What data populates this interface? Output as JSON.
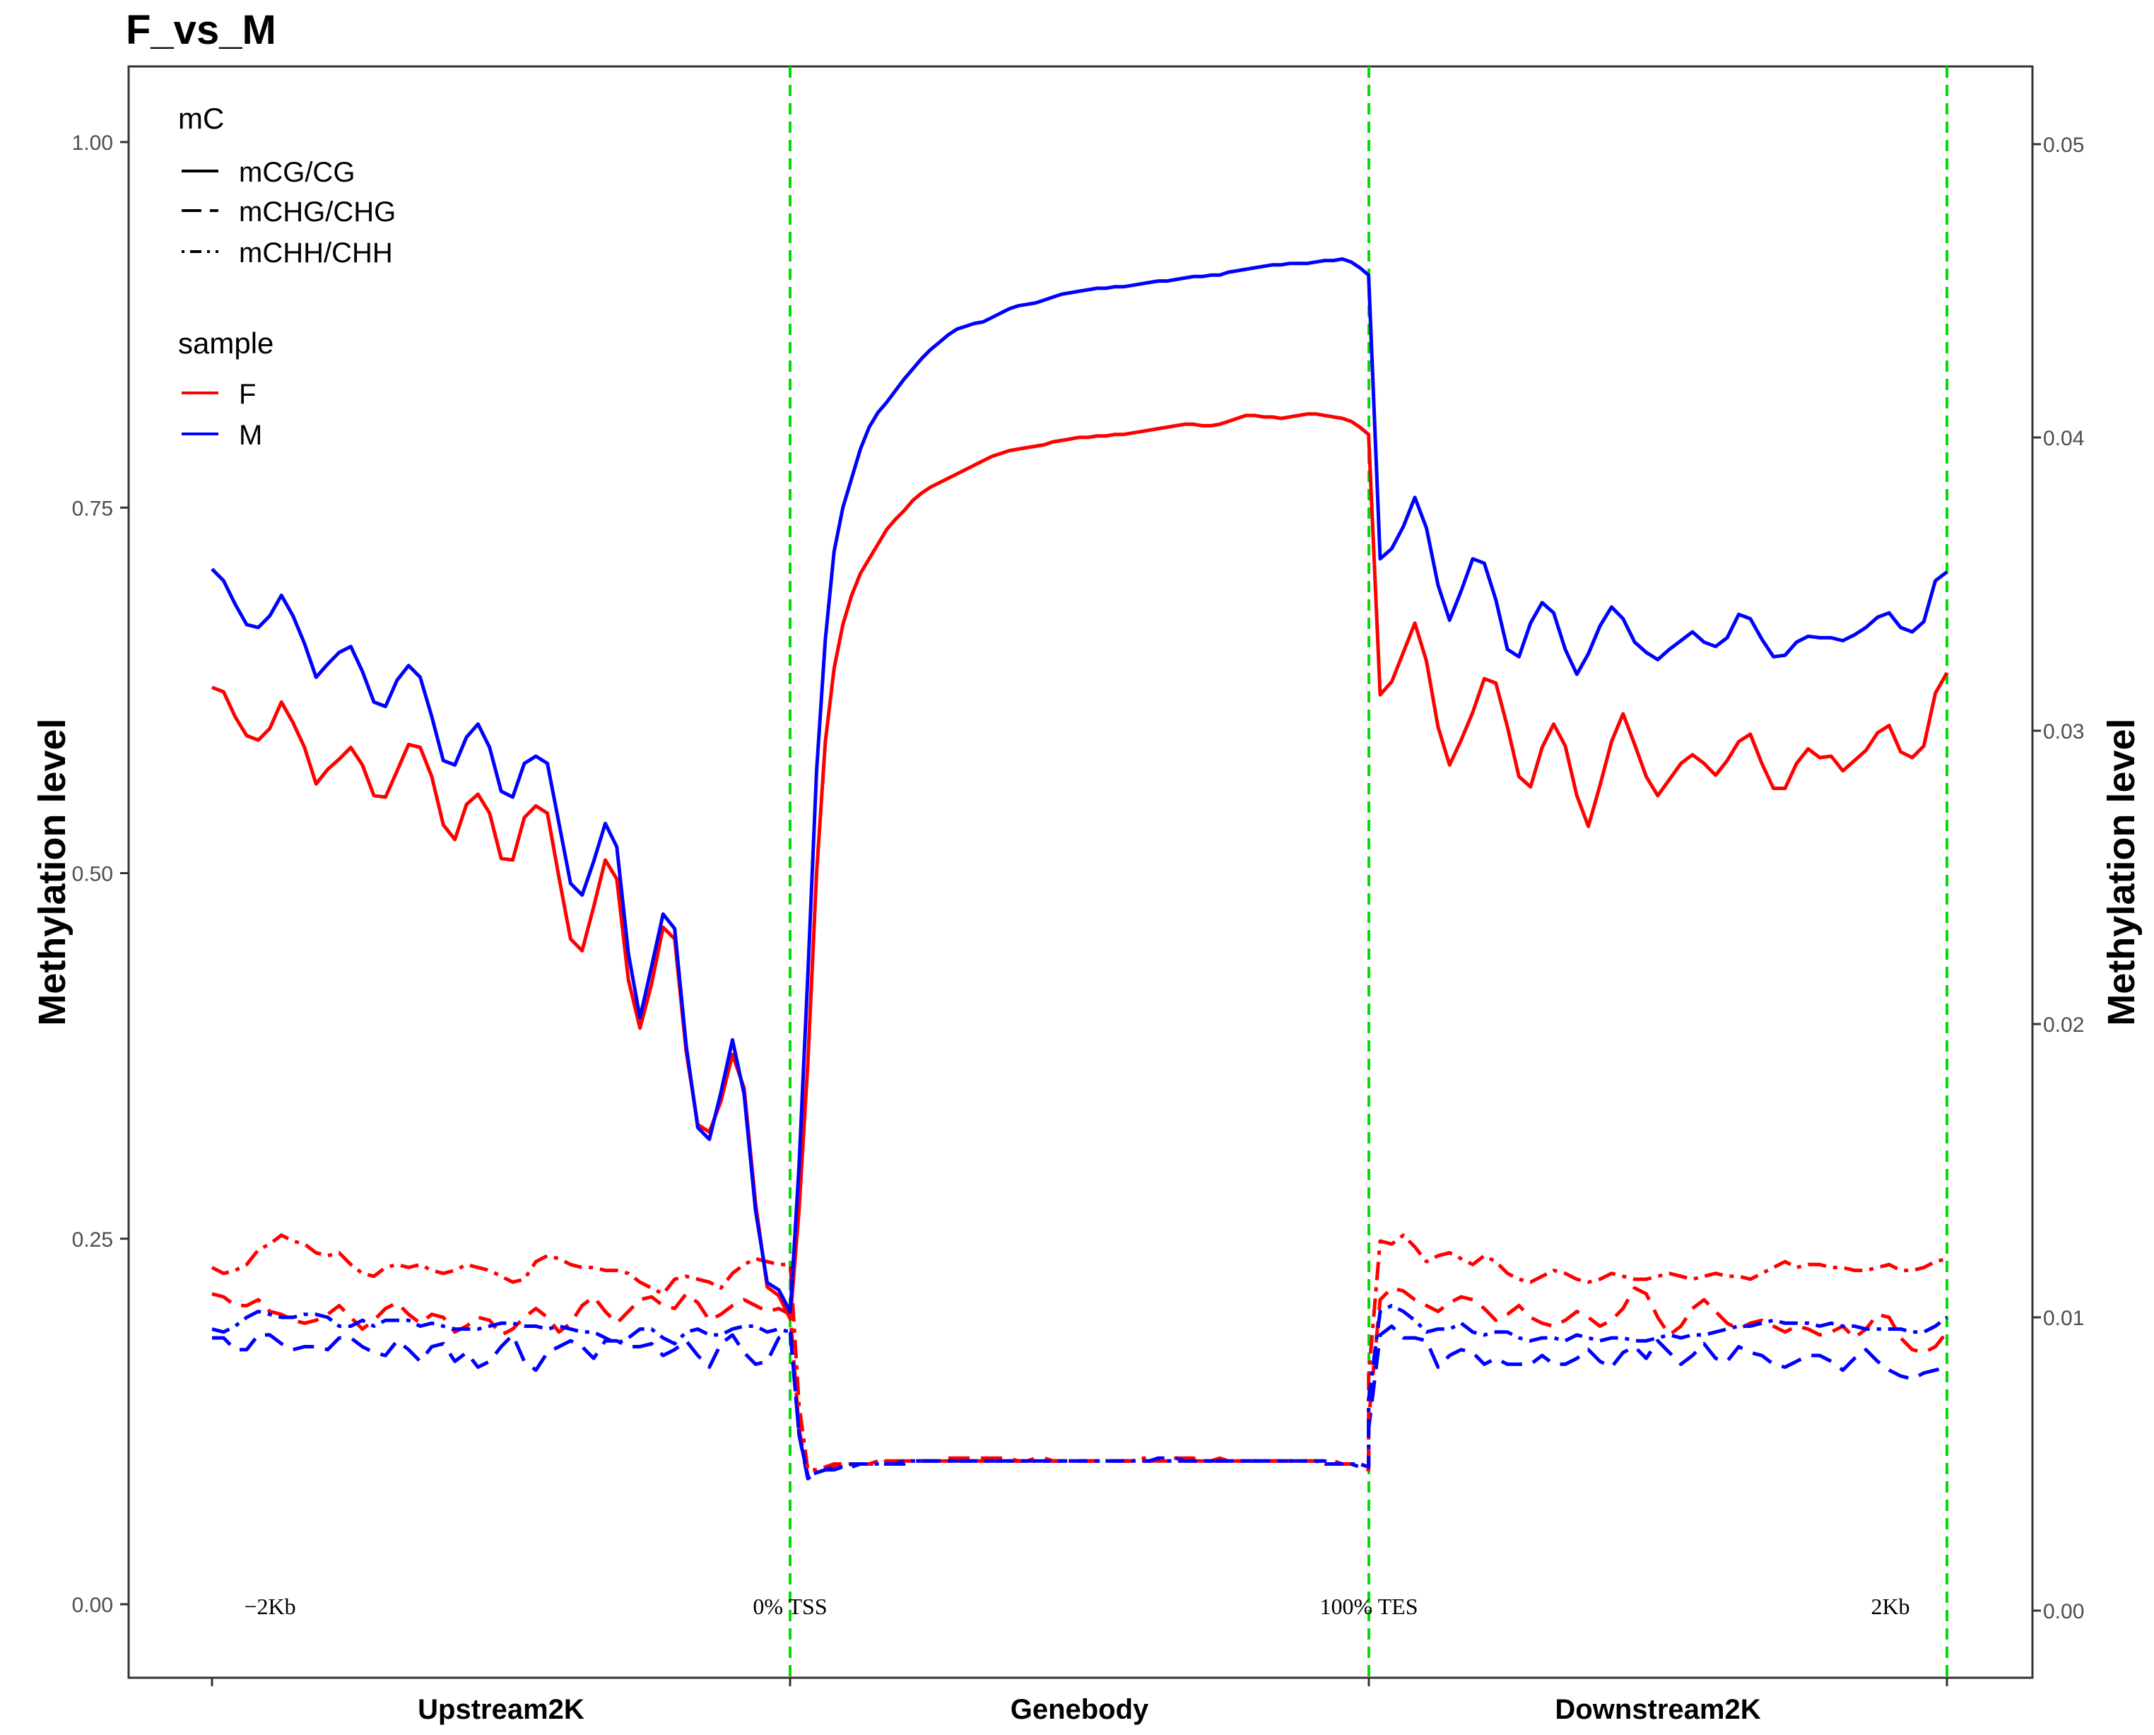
{
  "chart_data": {
    "type": "line",
    "title": "F_vs_M",
    "ylabel_left": "Methylation level",
    "ylabel_right": "Methylation level",
    "ylim_left": [
      -0.05,
      1.05
    ],
    "ylim_right": [
      -0.0025,
      0.0525
    ],
    "yticks_left": [
      "0.00",
      "0.25",
      "0.50",
      "0.75",
      "1.00"
    ],
    "yticks_right": [
      "0.00",
      "0.01",
      "0.02",
      "0.03",
      "0.04",
      "0.05"
    ],
    "grid": false,
    "regions": [
      "Upstream2K",
      "Genebody",
      "Downstream2K"
    ],
    "annotations": [
      "−2Kb",
      "0% TSS",
      "100% TES",
      "2Kb"
    ],
    "boundary_lines": [
      0,
      100
    ],
    "x_domain": [
      -100,
      200
    ],
    "legend": {
      "placement": "top-left",
      "mc_title": "mC",
      "mc_entries": [
        "mCG/CG",
        "mCHG/CHG",
        "mCHH/CHH"
      ],
      "sample_title": "sample",
      "sample_entries": [
        "F",
        "M"
      ]
    },
    "colors": {
      "F": "#ff0000",
      "M": "#0000ff",
      "boundary": "#00dd00"
    },
    "series": [
      {
        "sample": "F",
        "context": "mCG/CG",
        "axis": "left",
        "up": [
          0.627,
          0.624,
          0.607,
          0.594,
          0.591,
          0.599,
          0.617,
          0.603,
          0.586,
          0.561,
          0.571,
          0.578,
          0.586,
          0.574,
          0.553,
          0.552,
          0.57,
          0.588,
          0.586,
          0.566,
          0.533,
          0.523,
          0.547,
          0.554,
          0.541,
          0.51,
          0.509,
          0.538,
          0.546,
          0.541,
          0.497,
          0.455,
          0.447,
          0.477,
          0.509,
          0.496,
          0.427,
          0.394,
          0.424,
          0.463,
          0.455,
          0.378,
          0.328,
          0.323,
          0.344,
          0.376,
          0.353,
          0.274,
          0.217,
          0.211
        ],
        "gene": [
          0.195,
          0.27,
          0.37,
          0.5,
          0.59,
          0.64,
          0.67,
          0.69,
          0.705,
          0.715,
          0.725,
          0.735,
          0.742,
          0.748,
          0.755,
          0.76,
          0.764,
          0.767,
          0.77,
          0.773,
          0.776,
          0.779,
          0.782,
          0.785,
          0.787,
          0.789,
          0.79,
          0.791,
          0.792,
          0.793,
          0.795,
          0.796,
          0.797,
          0.798,
          0.798,
          0.799,
          0.799,
          0.8,
          0.8,
          0.801,
          0.802,
          0.803,
          0.804,
          0.805,
          0.806,
          0.807,
          0.807,
          0.806,
          0.806,
          0.807,
          0.809,
          0.811,
          0.813,
          0.813,
          0.812,
          0.812,
          0.811,
          0.812,
          0.813,
          0.814,
          0.814,
          0.813,
          0.812,
          0.811,
          0.809,
          0.805,
          0.8
        ],
        "down": [
          0.799,
          0.622,
          0.631,
          0.651,
          0.671,
          0.645,
          0.6,
          0.574,
          0.591,
          0.61,
          0.633,
          0.63,
          0.6,
          0.566,
          0.559,
          0.586,
          0.602,
          0.587,
          0.553,
          0.532,
          0.56,
          0.59,
          0.609,
          0.588,
          0.566,
          0.553,
          0.564,
          0.575,
          0.581,
          0.575,
          0.567,
          0.577,
          0.59,
          0.595,
          0.575,
          0.558,
          0.558,
          0.575,
          0.585,
          0.579,
          0.58,
          0.57,
          0.577,
          0.584,
          0.596,
          0.601,
          0.583,
          0.579,
          0.587,
          0.623,
          0.637
        ]
      },
      {
        "sample": "M",
        "context": "mCG/CG",
        "axis": "left",
        "up": [
          0.708,
          0.7,
          0.684,
          0.67,
          0.668,
          0.676,
          0.69,
          0.676,
          0.657,
          0.634,
          0.643,
          0.651,
          0.655,
          0.638,
          0.617,
          0.614,
          0.632,
          0.642,
          0.634,
          0.607,
          0.577,
          0.574,
          0.593,
          0.602,
          0.586,
          0.556,
          0.552,
          0.575,
          0.58,
          0.575,
          0.534,
          0.493,
          0.485,
          0.508,
          0.534,
          0.518,
          0.445,
          0.401,
          0.436,
          0.472,
          0.462,
          0.382,
          0.326,
          0.318,
          0.35,
          0.386,
          0.349,
          0.269,
          0.22,
          0.215
        ],
        "gene": [
          0.2,
          0.3,
          0.43,
          0.57,
          0.66,
          0.72,
          0.75,
          0.77,
          0.79,
          0.805,
          0.815,
          0.822,
          0.83,
          0.838,
          0.845,
          0.852,
          0.858,
          0.863,
          0.868,
          0.872,
          0.874,
          0.876,
          0.877,
          0.88,
          0.883,
          0.886,
          0.888,
          0.889,
          0.89,
          0.892,
          0.894,
          0.896,
          0.897,
          0.898,
          0.899,
          0.9,
          0.9,
          0.901,
          0.901,
          0.902,
          0.903,
          0.904,
          0.905,
          0.905,
          0.906,
          0.907,
          0.908,
          0.908,
          0.909,
          0.909,
          0.911,
          0.912,
          0.913,
          0.914,
          0.915,
          0.916,
          0.916,
          0.917,
          0.917,
          0.917,
          0.918,
          0.919,
          0.919,
          0.92,
          0.918,
          0.914,
          0.909
        ],
        "down": [
          0.908,
          0.715,
          0.722,
          0.737,
          0.757,
          0.736,
          0.697,
          0.673,
          0.693,
          0.715,
          0.712,
          0.687,
          0.653,
          0.648,
          0.671,
          0.685,
          0.678,
          0.653,
          0.636,
          0.65,
          0.669,
          0.682,
          0.674,
          0.658,
          0.651,
          0.646,
          0.653,
          0.659,
          0.665,
          0.658,
          0.655,
          0.661,
          0.677,
          0.674,
          0.66,
          0.648,
          0.649,
          0.658,
          0.662,
          0.661,
          0.661,
          0.659,
          0.663,
          0.668,
          0.675,
          0.678,
          0.668,
          0.665,
          0.672,
          0.7,
          0.706
        ]
      },
      {
        "sample": "F",
        "context": "mCHG/CHG",
        "axis": "right",
        "up": [
          0.0108,
          0.0107,
          0.0104,
          0.0104,
          0.0106,
          0.0102,
          0.0101,
          0.0099,
          0.0098,
          0.0099,
          0.0101,
          0.0104,
          0.01,
          0.0096,
          0.0099,
          0.0103,
          0.0105,
          0.0101,
          0.0098,
          0.0101,
          0.01,
          0.0095,
          0.0097,
          0.01,
          0.0099,
          0.0094,
          0.0096,
          0.01,
          0.0103,
          0.01,
          0.0095,
          0.0098,
          0.0104,
          0.0107,
          0.0102,
          0.0098,
          0.0102,
          0.0106,
          0.0107,
          0.0104,
          0.0103,
          0.0108,
          0.0105,
          0.0099,
          0.0101,
          0.0104,
          0.0106,
          0.0104,
          0.0102,
          0.0103
        ],
        "gene": [
          0.0101,
          0.0062,
          0.0046,
          0.0047,
          0.0048,
          0.0049,
          0.005,
          0.005,
          0.005,
          0.005,
          0.005,
          0.0051,
          0.0051,
          0.0051,
          0.0051,
          0.0051,
          0.0051,
          0.0051,
          0.0052,
          0.0052,
          0.0052,
          0.0052,
          0.0052,
          0.0052,
          0.0052,
          0.0052,
          0.0051,
          0.0051,
          0.0052,
          0.0052,
          0.0051,
          0.0051,
          0.0051,
          0.0051,
          0.0051,
          0.0051,
          0.0051,
          0.0051,
          0.0051,
          0.0051,
          0.0051,
          0.0051,
          0.0051,
          0.0052,
          0.0052,
          0.0052,
          0.0052,
          0.0051,
          0.0051,
          0.0052,
          0.0051,
          0.0051,
          0.0051,
          0.0051,
          0.0051,
          0.0051,
          0.0051,
          0.0051,
          0.0051,
          0.0051,
          0.0051,
          0.0051,
          0.0051,
          0.005,
          0.005,
          0.0049,
          0.0048
        ],
        "down": [
          0.0065,
          0.0106,
          0.011,
          0.0109,
          0.0106,
          0.0104,
          0.0102,
          0.0105,
          0.0107,
          0.0106,
          0.0103,
          0.0099,
          0.0101,
          0.0104,
          0.01,
          0.0098,
          0.0097,
          0.0099,
          0.0102,
          0.01,
          0.0097,
          0.0099,
          0.0103,
          0.011,
          0.0108,
          0.01,
          0.0094,
          0.0097,
          0.0103,
          0.0106,
          0.0102,
          0.0098,
          0.0096,
          0.0098,
          0.0099,
          0.0097,
          0.0095,
          0.0097,
          0.0096,
          0.0094,
          0.0095,
          0.0097,
          0.0093,
          0.0096,
          0.0101,
          0.01,
          0.0093,
          0.0089,
          0.0088,
          0.009,
          0.0095
        ]
      },
      {
        "sample": "M",
        "context": "mCHG/CHG",
        "axis": "right",
        "up": [
          0.0093,
          0.0093,
          0.0089,
          0.0089,
          0.0094,
          0.0094,
          0.0091,
          0.0089,
          0.009,
          0.009,
          0.0089,
          0.0093,
          0.0093,
          0.009,
          0.0088,
          0.0087,
          0.0092,
          0.0089,
          0.0085,
          0.009,
          0.0091,
          0.0085,
          0.0088,
          0.0083,
          0.0085,
          0.009,
          0.0094,
          0.0085,
          0.0082,
          0.0088,
          0.009,
          0.0092,
          0.009,
          0.0086,
          0.0092,
          0.0092,
          0.009,
          0.009,
          0.0091,
          0.0087,
          0.0089,
          0.0092,
          0.0087,
          0.0083,
          0.0091,
          0.0094,
          0.0088,
          0.0084,
          0.0085,
          0.0093
        ],
        "gene": [
          0.0095,
          0.006,
          0.0045,
          0.0047,
          0.0048,
          0.0048,
          0.0049,
          0.0049,
          0.005,
          0.005,
          0.005,
          0.005,
          0.005,
          0.005,
          0.0051,
          0.0051,
          0.0051,
          0.0051,
          0.0051,
          0.0051,
          0.0051,
          0.0051,
          0.0051,
          0.0051,
          0.0051,
          0.0051,
          0.0051,
          0.0051,
          0.0051,
          0.0051,
          0.0051,
          0.0051,
          0.0051,
          0.0051,
          0.0051,
          0.0051,
          0.0051,
          0.0051,
          0.0051,
          0.0051,
          0.0051,
          0.0051,
          0.0052,
          0.0052,
          0.0052,
          0.0051,
          0.0051,
          0.0051,
          0.0051,
          0.0051,
          0.0051,
          0.0051,
          0.0051,
          0.0051,
          0.0051,
          0.0051,
          0.0051,
          0.0051,
          0.0051,
          0.0051,
          0.0051,
          0.0051,
          0.005,
          0.005,
          0.005,
          0.0049,
          0.0049
        ],
        "down": [
          0.0062,
          0.0094,
          0.0097,
          0.0093,
          0.0093,
          0.0092,
          0.0083,
          0.0087,
          0.0089,
          0.0088,
          0.0084,
          0.0086,
          0.0084,
          0.0084,
          0.0084,
          0.0087,
          0.0084,
          0.0084,
          0.0086,
          0.0089,
          0.0085,
          0.0083,
          0.0088,
          0.009,
          0.0086,
          0.0092,
          0.0088,
          0.0084,
          0.0087,
          0.0091,
          0.0086,
          0.0085,
          0.009,
          0.0088,
          0.0087,
          0.0084,
          0.0083,
          0.0085,
          0.0087,
          0.0087,
          0.0085,
          0.0082,
          0.0086,
          0.0089,
          0.0085,
          0.0082,
          0.008,
          0.0079,
          0.0081,
          0.0082,
          0.0083
        ]
      },
      {
        "sample": "F",
        "context": "mCHH/CHH",
        "axis": "right",
        "up": [
          0.0117,
          0.0115,
          0.0116,
          0.0118,
          0.0123,
          0.0125,
          0.0128,
          0.0126,
          0.0125,
          0.0122,
          0.0121,
          0.0122,
          0.0118,
          0.0115,
          0.0114,
          0.0117,
          0.0118,
          0.0117,
          0.0118,
          0.0116,
          0.0115,
          0.0116,
          0.0118,
          0.0117,
          0.0116,
          0.0114,
          0.0112,
          0.0113,
          0.0119,
          0.0121,
          0.012,
          0.0118,
          0.0117,
          0.0117,
          0.0116,
          0.0116,
          0.0115,
          0.0112,
          0.011,
          0.0108,
          0.0113,
          0.0114,
          0.0113,
          0.0112,
          0.011,
          0.0115,
          0.0118,
          0.012,
          0.0119,
          0.0118
        ],
        "gene": [
          0.0118,
          0.007,
          0.0048,
          0.0048,
          0.0049,
          0.005,
          0.005,
          0.005,
          0.005,
          0.005,
          0.0051,
          0.0051,
          0.0051,
          0.0051,
          0.0051,
          0.0051,
          0.0051,
          0.0051,
          0.0051,
          0.0051,
          0.0051,
          0.0051,
          0.0051,
          0.0051,
          0.0051,
          0.0051,
          0.0051,
          0.0051,
          0.0051,
          0.0051,
          0.0051,
          0.0051,
          0.0051,
          0.0051,
          0.0051,
          0.0051,
          0.0051,
          0.0051,
          0.0051,
          0.0051,
          0.0052,
          0.0052,
          0.0051,
          0.0051,
          0.0051,
          0.0051,
          0.0051,
          0.0051,
          0.0051,
          0.0051,
          0.0051,
          0.0051,
          0.0051,
          0.0051,
          0.0051,
          0.0051,
          0.0051,
          0.0051,
          0.0051,
          0.0051,
          0.0051,
          0.005,
          0.005,
          0.005,
          0.005,
          0.005,
          0.0049
        ],
        "down": [
          0.008,
          0.0126,
          0.0125,
          0.0128,
          0.0124,
          0.0119,
          0.0121,
          0.0122,
          0.012,
          0.0118,
          0.0121,
          0.0119,
          0.0115,
          0.0113,
          0.0112,
          0.0114,
          0.0116,
          0.0115,
          0.0113,
          0.0112,
          0.0113,
          0.0115,
          0.0114,
          0.0113,
          0.0113,
          0.0114,
          0.0115,
          0.0114,
          0.0113,
          0.0114,
          0.0115,
          0.0114,
          0.0114,
          0.0113,
          0.0115,
          0.0117,
          0.0119,
          0.0117,
          0.0118,
          0.0118,
          0.0117,
          0.0117,
          0.0116,
          0.0116,
          0.0117,
          0.0118,
          0.0116,
          0.0116,
          0.0117,
          0.0119,
          0.012
        ]
      },
      {
        "sample": "M",
        "context": "mCHH/CHH",
        "axis": "right",
        "up": [
          0.0096,
          0.0095,
          0.0097,
          0.01,
          0.0102,
          0.0101,
          0.01,
          0.01,
          0.0101,
          0.0101,
          0.01,
          0.0097,
          0.0097,
          0.0099,
          0.0097,
          0.0099,
          0.0099,
          0.0099,
          0.0097,
          0.0098,
          0.0097,
          0.0096,
          0.0096,
          0.0096,
          0.0097,
          0.0098,
          0.0098,
          0.0097,
          0.0097,
          0.0096,
          0.0097,
          0.0096,
          0.0095,
          0.0095,
          0.0093,
          0.0091,
          0.0093,
          0.0096,
          0.0096,
          0.0093,
          0.0091,
          0.0095,
          0.0096,
          0.0094,
          0.0094,
          0.0096,
          0.0097,
          0.0097,
          0.0095,
          0.0096
        ],
        "gene": [
          0.0095,
          0.006,
          0.0046,
          0.0047,
          0.0048,
          0.0049,
          0.0049,
          0.005,
          0.005,
          0.005,
          0.005,
          0.005,
          0.005,
          0.0051,
          0.0051,
          0.0051,
          0.0051,
          0.0051,
          0.0051,
          0.0051,
          0.0051,
          0.0051,
          0.0051,
          0.0051,
          0.0051,
          0.0051,
          0.0051,
          0.0051,
          0.0051,
          0.0051,
          0.0051,
          0.0051,
          0.0051,
          0.0051,
          0.0051,
          0.0051,
          0.0051,
          0.0051,
          0.0051,
          0.0051,
          0.0051,
          0.0051,
          0.0052,
          0.0051,
          0.0051,
          0.0051,
          0.0051,
          0.0051,
          0.0051,
          0.0051,
          0.0051,
          0.0051,
          0.0051,
          0.0051,
          0.0051,
          0.0051,
          0.0051,
          0.0051,
          0.0051,
          0.0051,
          0.0051,
          0.005,
          0.005,
          0.005,
          0.005,
          0.005,
          0.0049
        ],
        "down": [
          0.0072,
          0.0102,
          0.0104,
          0.0102,
          0.0099,
          0.0095,
          0.0096,
          0.0096,
          0.0098,
          0.0095,
          0.0094,
          0.0095,
          0.0095,
          0.0093,
          0.0092,
          0.0093,
          0.0093,
          0.0092,
          0.0094,
          0.0093,
          0.0092,
          0.0093,
          0.0093,
          0.0092,
          0.0092,
          0.0093,
          0.0094,
          0.0093,
          0.0094,
          0.0094,
          0.0095,
          0.0096,
          0.0097,
          0.0097,
          0.0098,
          0.0099,
          0.0098,
          0.0098,
          0.0098,
          0.0097,
          0.0098,
          0.0097,
          0.0097,
          0.0096,
          0.0096,
          0.0096,
          0.0096,
          0.0095,
          0.0095,
          0.0097,
          0.01
        ]
      }
    ]
  }
}
